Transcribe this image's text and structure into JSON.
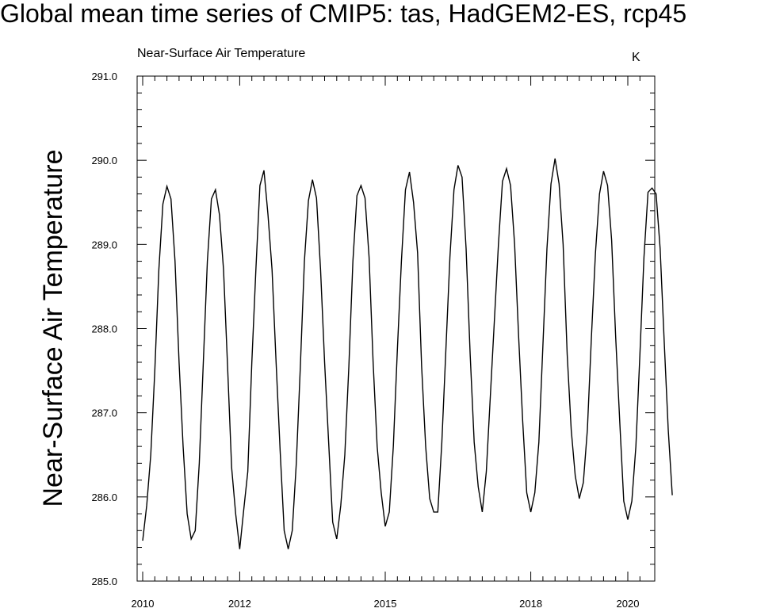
{
  "chart_data": {
    "type": "line",
    "title": "Global mean time series of CMIP5: tas, HadGEM2-ES, rcp45",
    "left_string": "Near-Surface Air Temperature",
    "right_string": "K",
    "ylabel": "Near-Surface Air Temperature",
    "xlabel": "",
    "xlim": [
      2010.0,
      2020.25
    ],
    "ylim": [
      285.0,
      291.0
    ],
    "x_ticks": [
      2010,
      2012,
      2015,
      2018,
      2020
    ],
    "x_tick_labels": [
      "2010",
      "2012",
      "2015",
      "2018",
      "2020"
    ],
    "y_ticks": [
      285.0,
      286.0,
      287.0,
      288.0,
      289.0,
      290.0,
      291.0
    ],
    "y_tick_labels": [
      "285.0",
      "286.0",
      "287.0",
      "288.0",
      "289.0",
      "290.0",
      "291.0"
    ],
    "grid": false,
    "legend": "none",
    "color": "#000000",
    "series": [
      {
        "x_start": "2010-01",
        "frequency": "monthly",
        "values": [
          285.48,
          285.9,
          286.5,
          287.5,
          288.7,
          289.48,
          289.69,
          289.54,
          288.8,
          287.6,
          286.6,
          285.8,
          285.5,
          285.6,
          286.4,
          287.6,
          288.8,
          289.54,
          289.65,
          289.35,
          288.7,
          287.55,
          286.35,
          285.8,
          285.38,
          285.85,
          286.3,
          287.6,
          288.7,
          289.7,
          289.88,
          289.35,
          288.7,
          287.6,
          286.55,
          285.6,
          285.38,
          285.6,
          286.4,
          287.55,
          288.8,
          289.52,
          289.77,
          289.55,
          288.7,
          287.6,
          286.65,
          285.7,
          285.5,
          285.9,
          286.5,
          287.55,
          288.8,
          289.58,
          289.7,
          289.55,
          288.85,
          287.6,
          286.6,
          286.05,
          285.65,
          285.82,
          286.6,
          287.75,
          288.8,
          289.65,
          289.86,
          289.5,
          288.9,
          287.55,
          286.6,
          285.98,
          285.82,
          285.82,
          286.65,
          287.75,
          288.85,
          289.65,
          289.94,
          289.8,
          288.95,
          287.7,
          286.65,
          286.12,
          285.82,
          286.3,
          287.2,
          288.1,
          289.0,
          289.75,
          289.9,
          289.7,
          289.0,
          287.9,
          286.9,
          286.05,
          285.82,
          286.05,
          286.65,
          287.8,
          288.95,
          289.72,
          290.02,
          289.72,
          289.0,
          287.7,
          286.8,
          286.25,
          285.98,
          286.17,
          286.8,
          287.9,
          288.9,
          289.6,
          289.87,
          289.7,
          289.05,
          287.9,
          286.9,
          285.95,
          285.73,
          285.95,
          286.6,
          287.7,
          288.85,
          289.62,
          289.67,
          289.6,
          288.95,
          287.85,
          286.8,
          286.02
        ]
      }
    ]
  }
}
